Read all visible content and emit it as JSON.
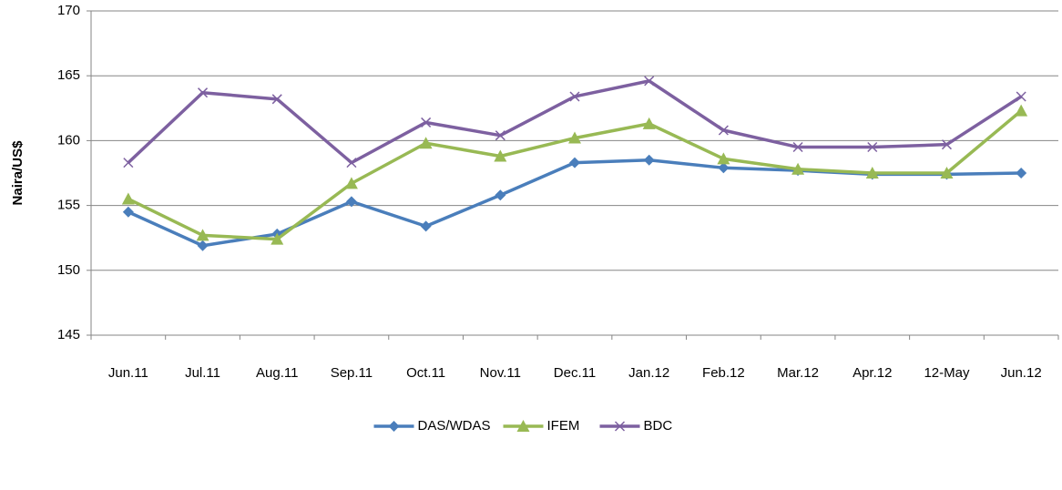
{
  "chart_data": {
    "type": "line",
    "y_label": "Naira/US$",
    "categories": [
      "Jun.11",
      "Jul.11",
      "Aug.11",
      "Sep.11",
      "Oct.11",
      "Nov.11",
      "Dec.11",
      "Jan.12",
      "Feb.12",
      "Mar.12",
      "Apr.12",
      "12-May",
      "Jun.12"
    ],
    "series": [
      {
        "name": "DAS/WDAS",
        "color": "#4a7ebb",
        "marker": "diamond",
        "values": [
          154.5,
          151.9,
          152.8,
          155.3,
          153.4,
          155.8,
          158.3,
          158.5,
          157.9,
          157.7,
          157.4,
          157.4,
          157.5
        ]
      },
      {
        "name": "IFEM",
        "color": "#98b954",
        "marker": "triangle",
        "values": [
          155.5,
          152.7,
          152.4,
          156.7,
          159.8,
          158.8,
          160.2,
          161.3,
          158.6,
          157.8,
          157.5,
          157.5,
          162.3
        ]
      },
      {
        "name": "BDC",
        "color": "#7d60a0",
        "marker": "x",
        "values": [
          158.3,
          163.7,
          163.2,
          158.3,
          161.4,
          160.4,
          163.4,
          164.6,
          160.8,
          159.5,
          159.5,
          159.7,
          163.4
        ]
      }
    ],
    "ylim": [
      145,
      170
    ],
    "yticks": [
      145,
      150,
      155,
      160,
      165,
      170
    ],
    "grid": true,
    "legend": "bottom"
  }
}
